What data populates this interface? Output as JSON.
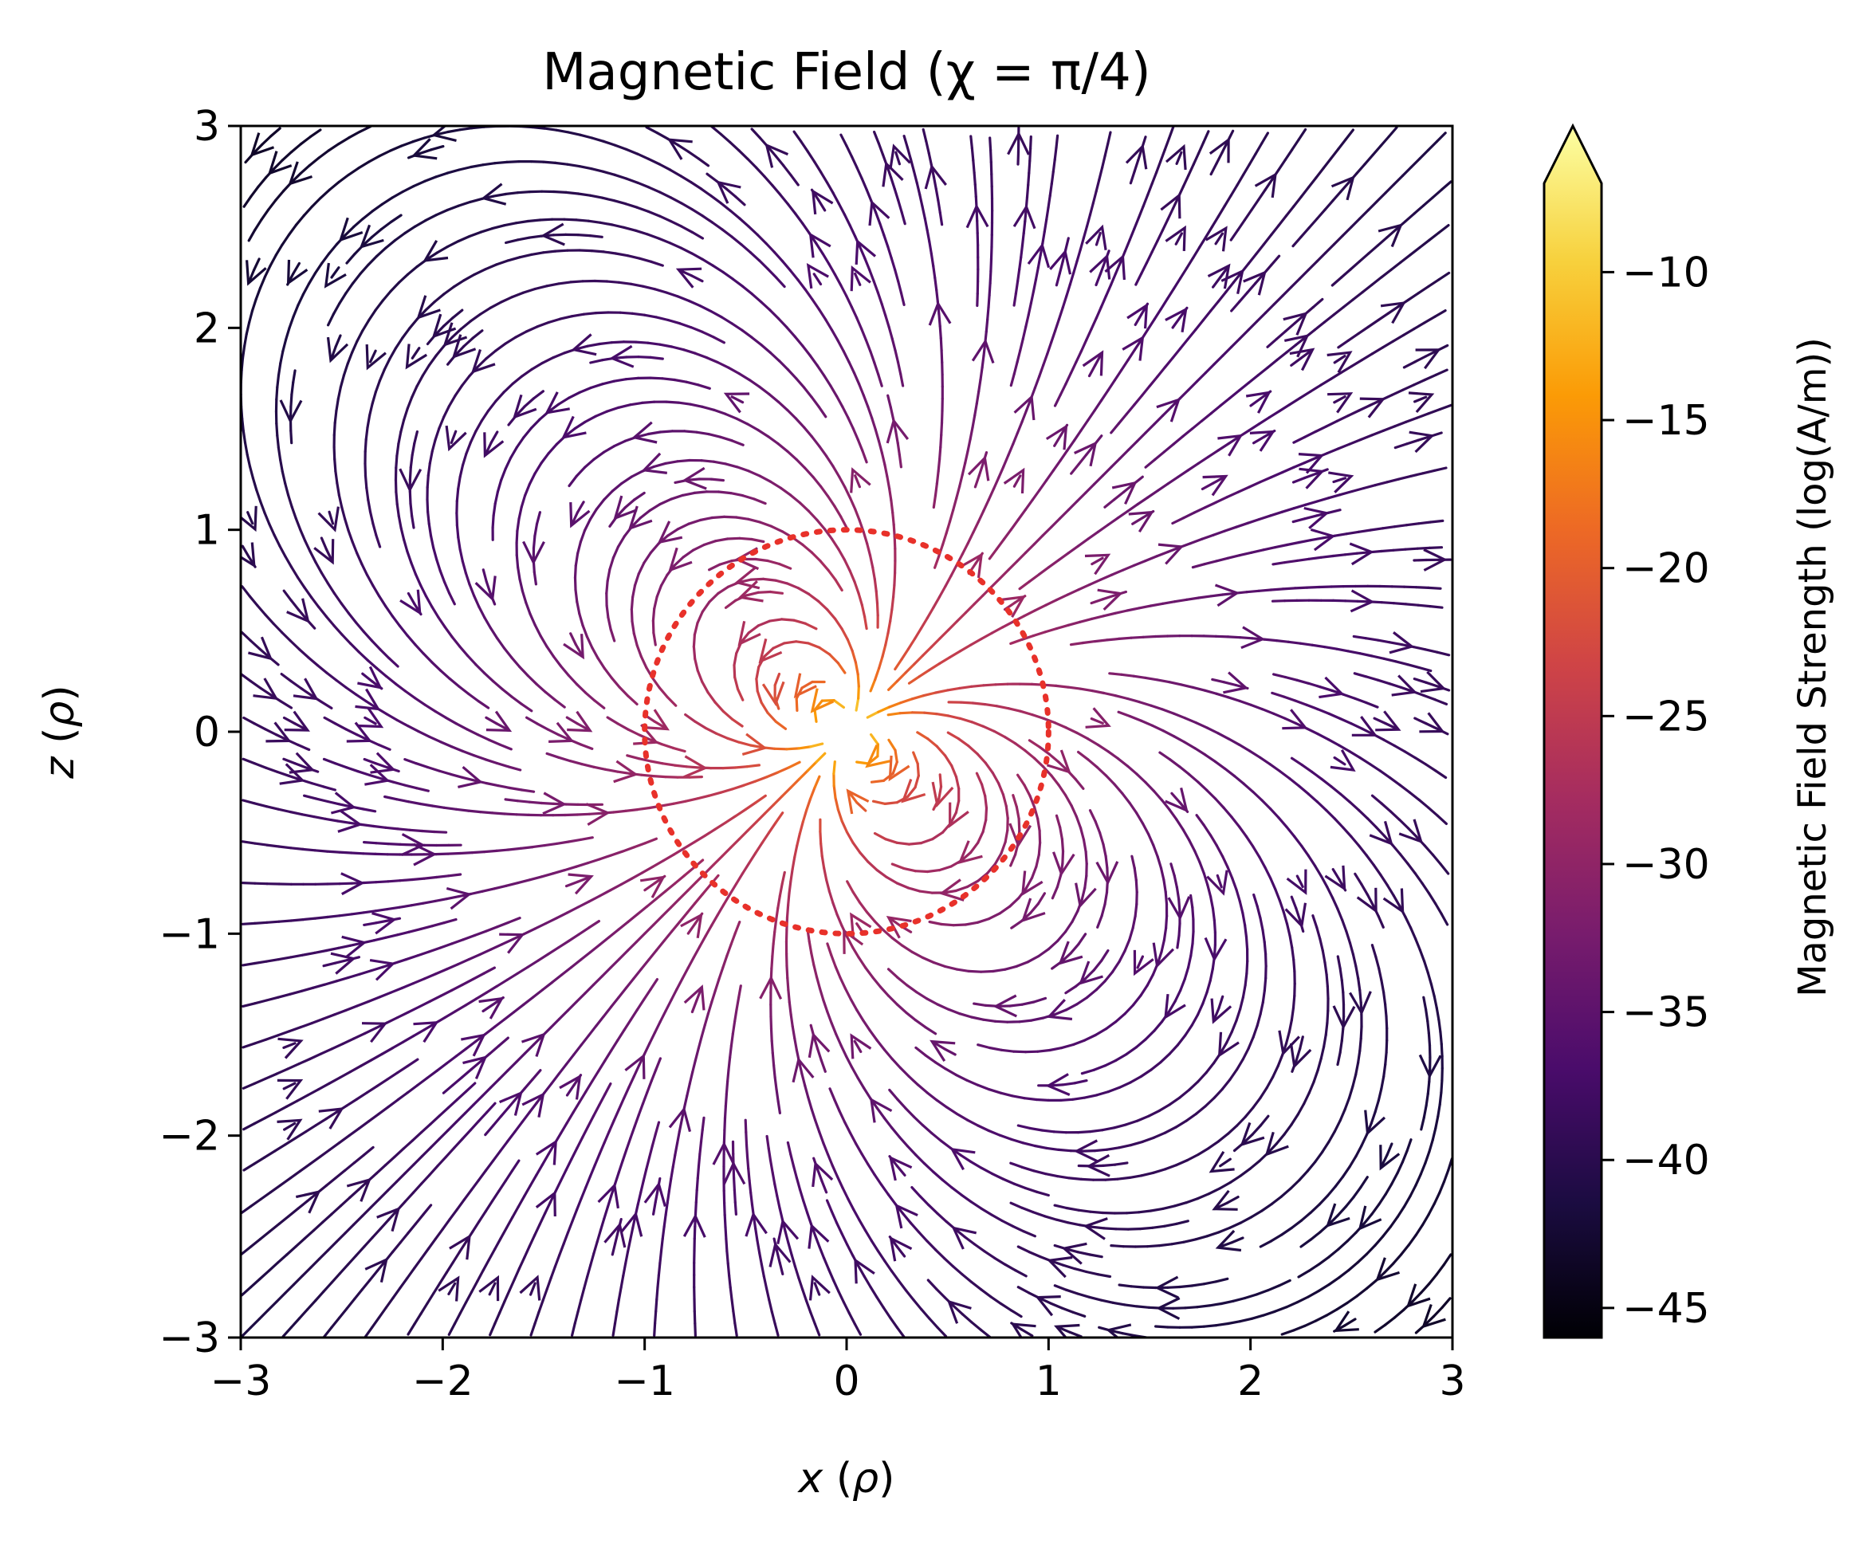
{
  "chart_data": {
    "type": "streamplot",
    "title": "Magnetic Field (χ = π/4)",
    "xlabel": "x (ρ)",
    "ylabel": "z (ρ)",
    "xlim": [
      -3,
      3
    ],
    "ylim": [
      -3,
      3
    ],
    "xticks": [
      -3,
      -2,
      -1,
      0,
      1,
      2,
      3
    ],
    "yticks": [
      -3,
      -2,
      -1,
      0,
      1,
      2,
      3
    ],
    "xtick_labels": [
      "−3",
      "−2",
      "−1",
      "0",
      "1",
      "2",
      "3"
    ],
    "ytick_labels": [
      "−3",
      "−2",
      "−1",
      "0",
      "1",
      "2",
      "3"
    ],
    "grid": false,
    "field": {
      "kind": "rotated dipole",
      "inclination_chi_rad": 0.7854,
      "center": [
        0,
        0
      ]
    },
    "circle_overlay": {
      "style": "dotted",
      "color": "#e8312a",
      "center": [
        0,
        0
      ],
      "radius": 1
    },
    "colorbar": {
      "label": "Magnetic Field Strength (log(A/m))",
      "colormap": "inferno",
      "range": [
        -46,
        -7
      ],
      "ticks": [
        -10,
        -15,
        -20,
        -25,
        -30,
        -35,
        -40,
        -45
      ],
      "tick_labels": [
        "−10",
        "−15",
        "−20",
        "−25",
        "−30",
        "−35",
        "−40",
        "−45"
      ],
      "extend": "max",
      "stops": [
        "#000004",
        "#1b0c41",
        "#4a0c6b",
        "#781c6d",
        "#a52c60",
        "#cf4446",
        "#ed6925",
        "#fb9b06",
        "#f7d13d",
        "#fcffa4"
      ]
    }
  }
}
